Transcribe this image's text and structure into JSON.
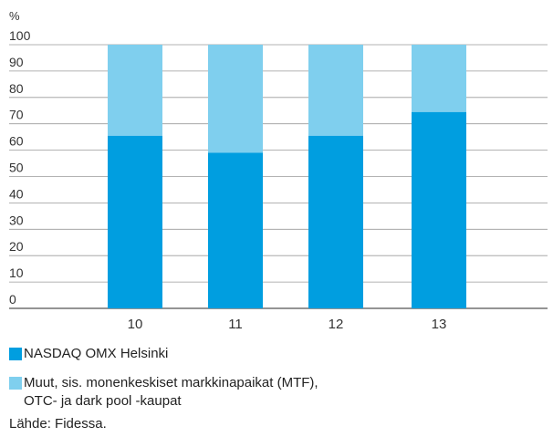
{
  "chart_data": {
    "type": "bar",
    "stacked": true,
    "y_unit": "%",
    "categories": [
      "10",
      "11",
      "12",
      "13"
    ],
    "ylim": [
      0,
      100
    ],
    "yticks": [
      0,
      10,
      20,
      30,
      40,
      50,
      60,
      70,
      80,
      90,
      100
    ],
    "series": [
      {
        "name": "NASDAQ OMX Helsinki",
        "values": [
          65.5,
          59,
          65.5,
          74.5
        ],
        "color": "#009ee0"
      },
      {
        "name": "Muut, sis. monenkeskiset markkinapaikat (MTF), OTC- ja dark pool -kaupat",
        "name_lines": [
          "Muut, sis. monenkeskiset markkinapaikat (MTF),",
          "OTC- ja dark pool -kaupat"
        ],
        "values": [
          34.5,
          41,
          34.5,
          25.5
        ],
        "color": "#7fcfee"
      }
    ],
    "gridlines": true,
    "legend_position": "bottom",
    "source": "Lähde: Fidessa."
  }
}
